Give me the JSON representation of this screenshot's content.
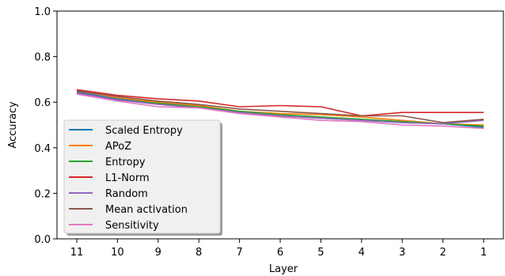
{
  "chart_data": {
    "type": "line",
    "title": "",
    "xlabel": "Layer",
    "ylabel": "Accuracy",
    "x": [
      "11",
      "10",
      "9",
      "8",
      "7",
      "6",
      "5",
      "4",
      "3",
      "2",
      "1"
    ],
    "ylim": [
      0.0,
      1.0
    ],
    "yticks": [
      "0.0",
      "0.2",
      "0.4",
      "0.6",
      "0.8",
      "1.0"
    ],
    "grid": false,
    "legend_position": "lower-left",
    "series": [
      {
        "name": "Scaled Entropy",
        "color": "#1f77b4",
        "values": [
          0.645,
          0.615,
          0.595,
          0.58,
          0.555,
          0.54,
          0.53,
          0.52,
          0.51,
          0.505,
          0.49
        ]
      },
      {
        "name": "APoZ",
        "color": "#ff7f0e",
        "values": [
          0.65,
          0.62,
          0.6,
          0.585,
          0.56,
          0.55,
          0.545,
          0.535,
          0.52,
          0.505,
          0.5
        ]
      },
      {
        "name": "Entropy",
        "color": "#2ca02c",
        "values": [
          0.64,
          0.61,
          0.595,
          0.58,
          0.56,
          0.545,
          0.535,
          0.525,
          0.515,
          0.505,
          0.495
        ]
      },
      {
        "name": "L1-Norm",
        "color": "#d62728",
        "values": [
          0.655,
          0.63,
          0.615,
          0.605,
          0.58,
          0.585,
          0.58,
          0.54,
          0.555,
          0.555,
          0.555
        ]
      },
      {
        "name": "Random",
        "color": "#9467bd",
        "values": [
          0.64,
          0.61,
          0.59,
          0.575,
          0.555,
          0.54,
          0.53,
          0.52,
          0.51,
          0.505,
          0.52
        ]
      },
      {
        "name": "Mean activation",
        "color": "#8c564b",
        "values": [
          0.65,
          0.625,
          0.605,
          0.59,
          0.57,
          0.56,
          0.55,
          0.54,
          0.54,
          0.51,
          0.525
        ]
      },
      {
        "name": "Sensitivity",
        "color": "#e377c2",
        "values": [
          0.635,
          0.605,
          0.58,
          0.575,
          0.55,
          0.535,
          0.52,
          0.515,
          0.5,
          0.495,
          0.485
        ]
      }
    ]
  }
}
